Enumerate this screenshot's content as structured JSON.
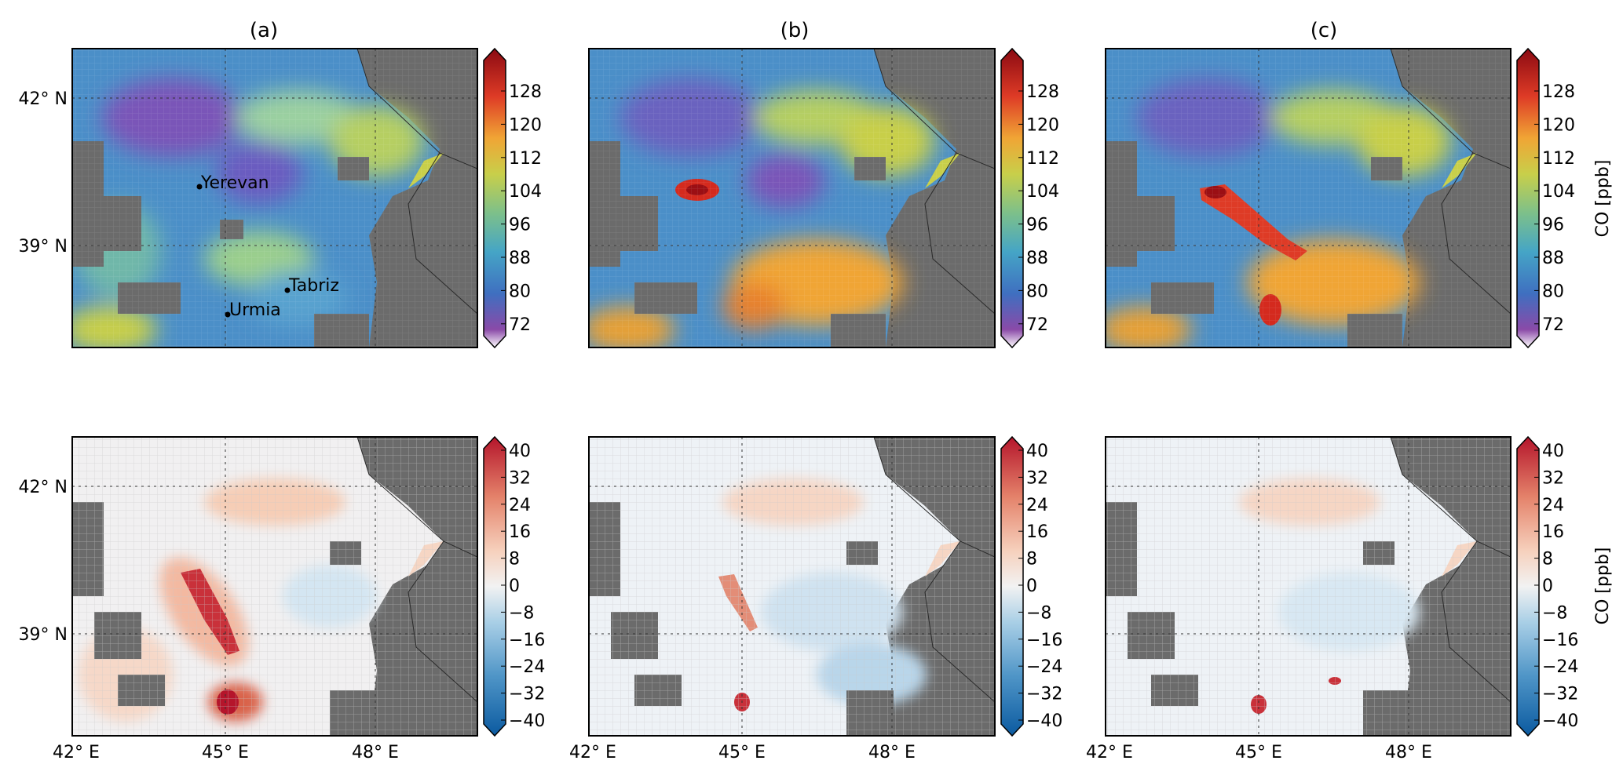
{
  "panel_titles": [
    "(a)",
    "(b)",
    "(c)"
  ],
  "lat_ticks": [
    "42° N",
    "39° N"
  ],
  "lon_ticks": [
    "42° E",
    "45° E",
    "48° E"
  ],
  "cities": [
    {
      "name": "Yerevan"
    },
    {
      "name": "Tabriz"
    },
    {
      "name": "Urmia"
    }
  ],
  "colorbar_top": {
    "ticks": [
      "128",
      "120",
      "112",
      "104",
      "96",
      "88",
      "80",
      "72"
    ],
    "label": "CO [ppb]",
    "colors": [
      "#ffffff",
      "#7b3294",
      "#3f6fc0",
      "#45a5c6",
      "#7dc08a",
      "#c8cf4a",
      "#f0a535",
      "#de3b26",
      "#8b0a12"
    ]
  },
  "colorbar_bottom": {
    "ticks": [
      "40",
      "32",
      "24",
      "16",
      "8",
      "0",
      "−8",
      "−16",
      "−24",
      "−32",
      "−40"
    ],
    "label": "CO [ppb]",
    "colors": [
      "#0b5aa0",
      "#4f95c7",
      "#a9cfe6",
      "#eef2f6",
      "#f6d6c4",
      "#e4826a",
      "#b5152b"
    ]
  },
  "colors": {
    "land_mask": "#6b6b6b",
    "frame": "#000000"
  }
}
